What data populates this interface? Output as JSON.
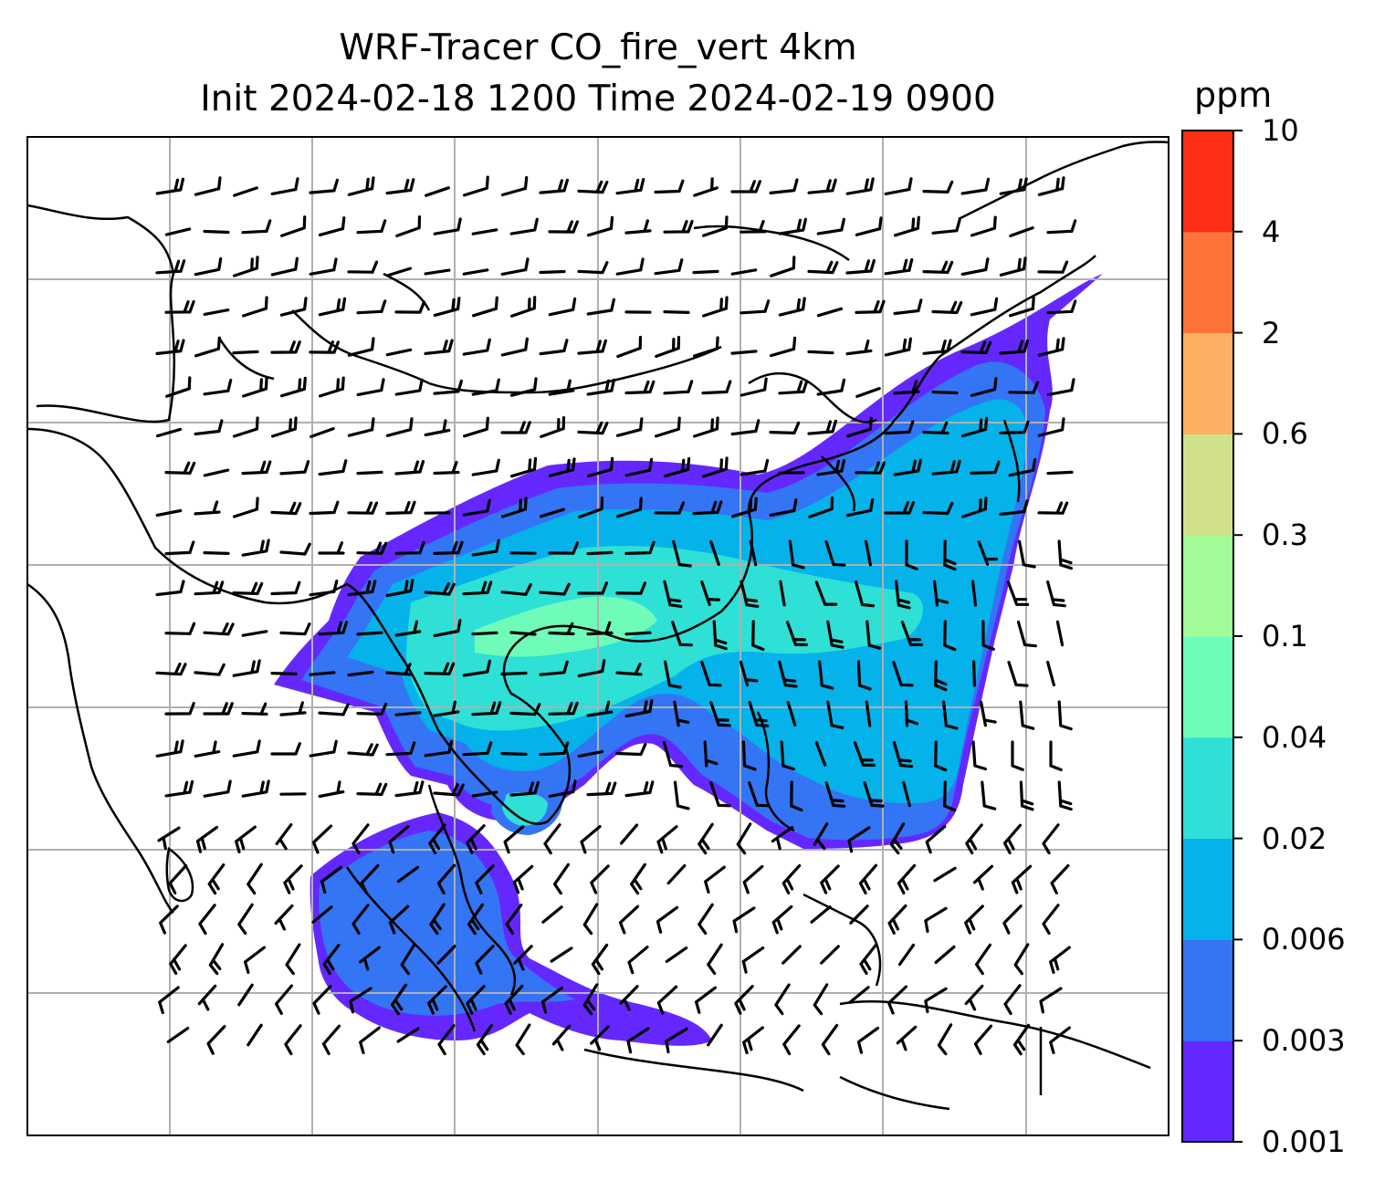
{
  "title": {
    "line1": "WRF-Tracer CO_fire_vert 4km",
    "line2": "Init 2024-02-18 1200 Time 2024-02-19 0900"
  },
  "colorbar": {
    "unit": "ppm",
    "levels": [
      "0.001",
      "0.003",
      "0.006",
      "0.02",
      "0.04",
      "0.1",
      "0.3",
      "0.6",
      "2",
      "4",
      "10"
    ],
    "colors": [
      "#6428ff",
      "#3375f4",
      "#05b2ea",
      "#2ee0d6",
      "#6ffcb8",
      "#a2fc98",
      "#d1e08a",
      "#fdb061",
      "#fe7438",
      "#ff2f17"
    ]
  },
  "map": {
    "field": "CO_fire_vert",
    "overlay": "wind barbs",
    "gridlines": true
  }
}
